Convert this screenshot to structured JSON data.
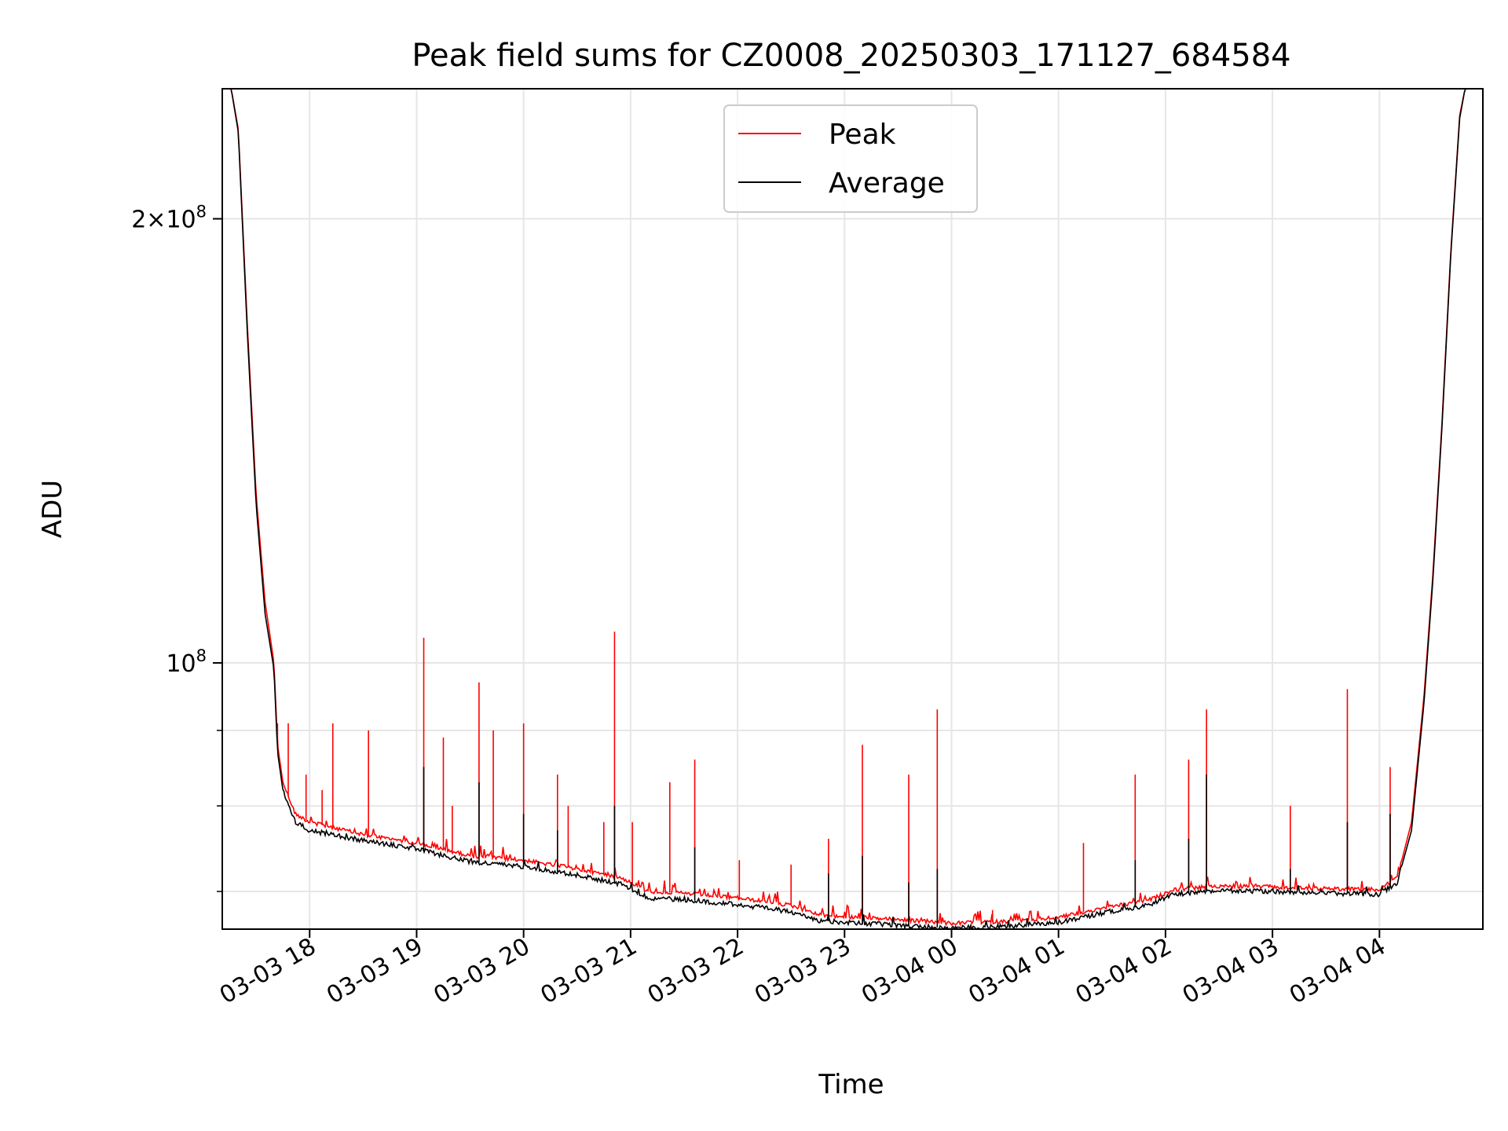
{
  "chart_data": {
    "type": "line",
    "title": "Peak field sums for CZ0008_20250303_171127_684584",
    "xlabel": "Time",
    "ylabel": "ADU",
    "y_scale": "log",
    "grid": true,
    "legend_placement": "top-center",
    "x_range": [
      "2025-03-03 17:11",
      "2025-03-04 04:58"
    ],
    "ylim": [
      66000000,
      245000000
    ],
    "x_ticks": [
      "03-03 18",
      "03-03 19",
      "03-03 20",
      "03-03 21",
      "03-03 22",
      "03-03 23",
      "03-04 00",
      "03-04 01",
      "03-04 02",
      "03-04 03",
      "03-04 04"
    ],
    "x_tick_times": [
      "2025-03-03 18:00",
      "2025-03-03 19:00",
      "2025-03-03 20:00",
      "2025-03-03 21:00",
      "2025-03-03 22:00",
      "2025-03-03 23:00",
      "2025-03-04 00:00",
      "2025-03-04 01:00",
      "2025-03-04 02:00",
      "2025-03-04 03:00",
      "2025-03-04 04:00"
    ],
    "y_ticks": [
      {
        "value": 200000000,
        "base": "2×10",
        "exp": "8"
      },
      {
        "value": 100000000,
        "base": "10",
        "exp": "8"
      }
    ],
    "y_minor_ticks": [
      70000000,
      80000000,
      90000000
    ],
    "series": [
      {
        "name": "Peak",
        "color": "#ff0000",
        "baseline": [
          [
            "2025-03-03 17:11",
            245000000
          ],
          [
            "2025-03-03 17:16",
            245000000
          ],
          [
            "2025-03-03 17:20",
            230000000
          ],
          [
            "2025-03-03 17:25",
            170000000
          ],
          [
            "2025-03-03 17:30",
            130000000
          ],
          [
            "2025-03-03 17:35",
            110000000
          ],
          [
            "2025-03-03 17:40",
            100000000
          ],
          [
            "2025-03-03 17:42",
            88000000
          ],
          [
            "2025-03-03 17:45",
            83000000
          ],
          [
            "2025-03-03 17:52",
            79000000
          ],
          [
            "2025-03-03 18:00",
            78000000
          ],
          [
            "2025-03-03 18:30",
            76500000
          ],
          [
            "2025-03-03 19:00",
            75500000
          ],
          [
            "2025-03-03 19:30",
            74000000
          ],
          [
            "2025-03-03 20:00",
            73500000
          ],
          [
            "2025-03-03 20:30",
            72500000
          ],
          [
            "2025-03-03 20:55",
            71500000
          ],
          [
            "2025-03-03 21:10",
            70000000
          ],
          [
            "2025-03-03 21:30",
            69800000
          ],
          [
            "2025-03-03 22:00",
            69300000
          ],
          [
            "2025-03-03 22:30",
            68500000
          ],
          [
            "2025-03-03 22:45",
            67500000
          ],
          [
            "2025-03-03 23:00",
            67300000
          ],
          [
            "2025-03-03 23:30",
            67000000
          ],
          [
            "2025-03-04 00:00",
            66600000
          ],
          [
            "2025-03-04 00:30",
            66800000
          ],
          [
            "2025-03-04 01:00",
            67200000
          ],
          [
            "2025-03-04 01:30",
            68400000
          ],
          [
            "2025-03-04 01:50",
            69000000
          ],
          [
            "2025-03-04 02:05",
            70200000
          ],
          [
            "2025-03-04 02:30",
            70600000
          ],
          [
            "2025-03-04 03:00",
            70500000
          ],
          [
            "2025-03-04 03:30",
            70300000
          ],
          [
            "2025-03-04 04:00",
            70200000
          ],
          [
            "2025-03-04 04:10",
            71500000
          ],
          [
            "2025-03-04 04:18",
            78000000
          ],
          [
            "2025-03-04 04:25",
            95000000
          ],
          [
            "2025-03-04 04:30",
            115000000
          ],
          [
            "2025-03-04 04:35",
            145000000
          ],
          [
            "2025-03-04 04:40",
            190000000
          ],
          [
            "2025-03-04 04:45",
            235000000
          ],
          [
            "2025-03-04 04:48",
            245000000
          ],
          [
            "2025-03-04 04:58",
            245000000
          ]
        ],
        "spikes": [
          [
            "2025-03-03 17:42",
            91000000
          ],
          [
            "2025-03-03 17:48",
            91000000
          ],
          [
            "2025-03-03 17:58",
            84000000
          ],
          [
            "2025-03-03 18:07",
            82000000
          ],
          [
            "2025-03-03 18:13",
            91000000
          ],
          [
            "2025-03-03 18:33",
            90000000
          ],
          [
            "2025-03-03 19:04",
            104000000
          ],
          [
            "2025-03-03 19:15",
            89000000
          ],
          [
            "2025-03-03 19:20",
            80000000
          ],
          [
            "2025-03-03 19:35",
            97000000
          ],
          [
            "2025-03-03 19:43",
            90000000
          ],
          [
            "2025-03-03 20:00",
            91000000
          ],
          [
            "2025-03-03 20:19",
            84000000
          ],
          [
            "2025-03-03 20:25",
            80000000
          ],
          [
            "2025-03-03 20:45",
            78000000
          ],
          [
            "2025-03-03 20:51",
            105000000
          ],
          [
            "2025-03-03 21:01",
            78000000
          ],
          [
            "2025-03-03 21:22",
            83000000
          ],
          [
            "2025-03-03 21:36",
            86000000
          ],
          [
            "2025-03-03 22:01",
            73500000
          ],
          [
            "2025-03-03 22:30",
            73000000
          ],
          [
            "2025-03-03 22:51",
            76000000
          ],
          [
            "2025-03-03 23:10",
            88000000
          ],
          [
            "2025-03-03 23:36",
            84000000
          ],
          [
            "2025-03-03 23:52",
            93000000
          ],
          [
            "2025-03-04 00:23",
            68000000
          ],
          [
            "2025-03-04 01:14",
            75500000
          ],
          [
            "2025-03-04 01:43",
            84000000
          ],
          [
            "2025-03-04 02:13",
            86000000
          ],
          [
            "2025-03-04 02:23",
            93000000
          ],
          [
            "2025-03-04 03:10",
            80000000
          ],
          [
            "2025-03-04 03:42",
            96000000
          ],
          [
            "2025-03-04 04:06",
            85000000
          ]
        ]
      },
      {
        "name": "Average",
        "color": "#000000",
        "baseline": [
          [
            "2025-03-03 17:11",
            245000000
          ],
          [
            "2025-03-03 17:16",
            245000000
          ],
          [
            "2025-03-03 17:20",
            229000000
          ],
          [
            "2025-03-03 17:25",
            168000000
          ],
          [
            "2025-03-03 17:30",
            128000000
          ],
          [
            "2025-03-03 17:35",
            108000000
          ],
          [
            "2025-03-03 17:40",
            99000000
          ],
          [
            "2025-03-03 17:42",
            87000000
          ],
          [
            "2025-03-03 17:45",
            82000000
          ],
          [
            "2025-03-03 17:52",
            78000000
          ],
          [
            "2025-03-03 18:00",
            77000000
          ],
          [
            "2025-03-03 18:30",
            75800000
          ],
          [
            "2025-03-03 19:00",
            74800000
          ],
          [
            "2025-03-03 19:30",
            73300000
          ],
          [
            "2025-03-03 20:00",
            72800000
          ],
          [
            "2025-03-03 20:30",
            71800000
          ],
          [
            "2025-03-03 20:55",
            70800000
          ],
          [
            "2025-03-03 21:10",
            69300000
          ],
          [
            "2025-03-03 21:30",
            69100000
          ],
          [
            "2025-03-03 22:00",
            68600000
          ],
          [
            "2025-03-03 22:30",
            67800000
          ],
          [
            "2025-03-03 22:45",
            66900000
          ],
          [
            "2025-03-03 23:00",
            66700000
          ],
          [
            "2025-03-03 23:30",
            66400000
          ],
          [
            "2025-03-04 00:00",
            66100000
          ],
          [
            "2025-03-04 00:30",
            66300000
          ],
          [
            "2025-03-04 01:00",
            66700000
          ],
          [
            "2025-03-04 01:30",
            67900000
          ],
          [
            "2025-03-04 01:50",
            68500000
          ],
          [
            "2025-03-04 02:05",
            69700000
          ],
          [
            "2025-03-04 02:30",
            70100000
          ],
          [
            "2025-03-04 03:00",
            70000000
          ],
          [
            "2025-03-04 03:30",
            69800000
          ],
          [
            "2025-03-04 04:00",
            69700000
          ],
          [
            "2025-03-04 04:10",
            71000000
          ],
          [
            "2025-03-04 04:18",
            77000000
          ],
          [
            "2025-03-04 04:25",
            94000000
          ],
          [
            "2025-03-04 04:30",
            114000000
          ],
          [
            "2025-03-04 04:35",
            144000000
          ],
          [
            "2025-03-04 04:40",
            189000000
          ],
          [
            "2025-03-04 04:45",
            234000000
          ],
          [
            "2025-03-04 04:48",
            245000000
          ],
          [
            "2025-03-04 04:58",
            245000000
          ]
        ],
        "spikes": [
          [
            "2025-03-03 19:04",
            85000000
          ],
          [
            "2025-03-03 19:35",
            83000000
          ],
          [
            "2025-03-03 20:00",
            79000000
          ],
          [
            "2025-03-03 20:19",
            77000000
          ],
          [
            "2025-03-03 20:51",
            80000000
          ],
          [
            "2025-03-03 21:36",
            75000000
          ],
          [
            "2025-03-03 22:51",
            72000000
          ],
          [
            "2025-03-03 23:10",
            74000000
          ],
          [
            "2025-03-03 23:36",
            71000000
          ],
          [
            "2025-03-03 23:52",
            72500000
          ],
          [
            "2025-03-04 01:43",
            73500000
          ],
          [
            "2025-03-04 02:13",
            76000000
          ],
          [
            "2025-03-04 02:23",
            84000000
          ],
          [
            "2025-03-04 03:10",
            72500000
          ],
          [
            "2025-03-04 03:42",
            78000000
          ],
          [
            "2025-03-04 04:06",
            79000000
          ]
        ]
      }
    ]
  }
}
